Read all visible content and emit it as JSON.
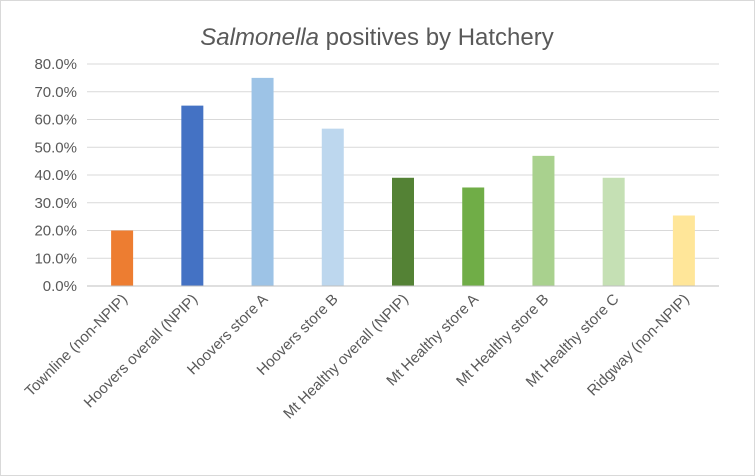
{
  "chart_data": {
    "type": "bar",
    "title_italic": "Salmonella",
    "title_rest": " positives by Hatchery",
    "xlabel": "",
    "ylabel": "",
    "ylim": [
      0,
      80
    ],
    "y_ticks": [
      "0.0%",
      "10.0%",
      "20.0%",
      "30.0%",
      "40.0%",
      "50.0%",
      "60.0%",
      "70.0%",
      "80.0%"
    ],
    "grid": true,
    "legend": "none",
    "categories": [
      "Townline (non-NPIP)",
      "Hoovers overall (NPIP)",
      "Hoovers store A",
      "Hoovers store B",
      "Mt Healthy overall (NPIP)",
      "Mt Healthy store A",
      "Mt Healthy store B",
      "Mt Healthy store C",
      "Ridgway (non-NPIP)"
    ],
    "values": [
      20.0,
      65.0,
      75.0,
      56.7,
      39.0,
      35.5,
      46.9,
      39.0,
      25.4
    ],
    "colors": [
      "#ED7D31",
      "#4472C4",
      "#9DC3E6",
      "#BDD7EE",
      "#548235",
      "#70AD47",
      "#A9D18E",
      "#C5E0B4",
      "#FFE699"
    ]
  }
}
